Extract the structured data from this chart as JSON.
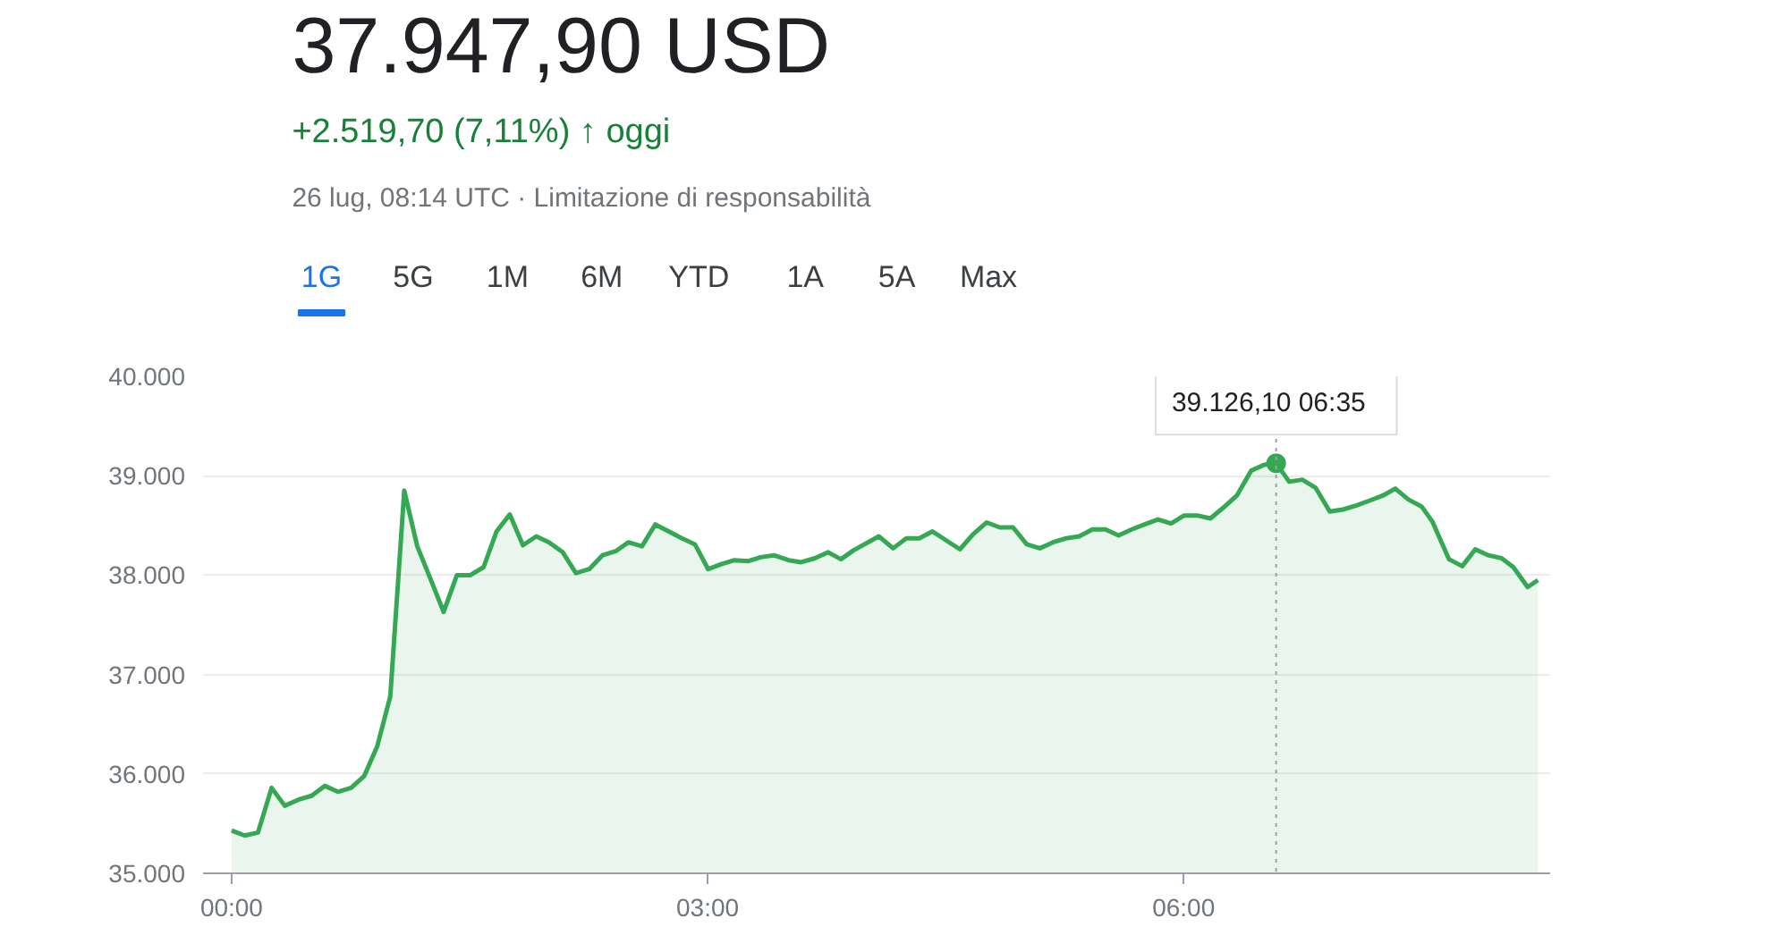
{
  "chart_data": {
    "type": "area",
    "title": "37.947,90 USD",
    "subtitle": "+2.519,70 (7,11%) ↑ oggi",
    "annotations": [
      "26 lug, 08:14 UTC · Limitazione di responsabilità",
      "1G",
      "5G",
      "1M",
      "6M",
      "YTD",
      "1A",
      "5A",
      "Max",
      {
        "text": "39.126,10   06:35",
        "x": 6.583,
        "y": 39126.1
      }
    ],
    "x": [
      0,
      0.083,
      0.166,
      0.252,
      0.335,
      0.42,
      0.504,
      0.587,
      0.67,
      0.753,
      0.836,
      0.918,
      1.0,
      1.088,
      1.17,
      1.254,
      1.336,
      1.42,
      1.505,
      1.588,
      1.67,
      1.753,
      1.836,
      1.92,
      2.0,
      2.087,
      2.17,
      2.254,
      2.337,
      2.42,
      2.5,
      2.586,
      2.67,
      2.755,
      2.838,
      2.92,
      3.003,
      3.086,
      3.169,
      3.252,
      3.335,
      3.418,
      3.51,
      3.59,
      3.676,
      3.76,
      3.84,
      3.92,
      4.079,
      4.169,
      4.252,
      4.334,
      4.417,
      4.503,
      4.59,
      4.672,
      4.759,
      4.841,
      4.925,
      5.011,
      5.094,
      5.177,
      5.259,
      5.342,
      5.425,
      5.507,
      5.59,
      5.673,
      5.755,
      5.838,
      5.921,
      6.003,
      6.086,
      6.169,
      6.251,
      6.335,
      6.425,
      6.507,
      6.583,
      6.665,
      6.748,
      6.831,
      6.921,
      7.003,
      7.086,
      7.173,
      7.255,
      7.334,
      7.417,
      7.5,
      7.567,
      7.672,
      7.756,
      7.838,
      7.92,
      8.004,
      8.078,
      8.168,
      8.233
    ],
    "series": [
      {
        "color": "#34a853",
        "values": [
          35430,
          35380,
          35410,
          35860,
          35680,
          35740,
          35780,
          35880,
          35820,
          35860,
          35980,
          36280,
          36780,
          38850,
          38290,
          37960,
          37630,
          38000,
          38000,
          38080,
          38440,
          38610,
          38300,
          38390,
          38330,
          38230,
          38020,
          38060,
          38200,
          38240,
          38330,
          38290,
          38510,
          38440,
          38370,
          38310,
          38060,
          38110,
          38150,
          38140,
          38180,
          38200,
          38150,
          38130,
          38170,
          38230,
          38160,
          38250,
          38390,
          38270,
          38370,
          38370,
          38440,
          38350,
          38260,
          38410,
          38530,
          38480,
          38480,
          38310,
          38270,
          38330,
          38370,
          38390,
          38460,
          38460,
          38400,
          38460,
          38510,
          38560,
          38520,
          38600,
          38600,
          38570,
          38680,
          38800,
          39050,
          39110,
          39126.1,
          38940,
          38960,
          38880,
          38640,
          38660,
          38700,
          38750,
          38800,
          38870,
          38760,
          38690,
          38540,
          38160,
          38090,
          38260,
          38200,
          38170,
          38080,
          37880,
          37950
        ]
      }
    ],
    "xlim": [
      -0.18,
      8.31
    ],
    "xticks": [
      {
        "value": 0,
        "label": "00:00"
      },
      {
        "value": 3,
        "label": "03:00"
      },
      {
        "value": 6,
        "label": "06:00"
      }
    ],
    "ylim": [
      35000,
      40000
    ],
    "yticks": [
      {
        "value": 35000,
        "label": "35.000"
      },
      {
        "value": 36000,
        "label": "36.000"
      },
      {
        "value": 37000,
        "label": "37.000"
      },
      {
        "value": 38000,
        "label": "38.000"
      },
      {
        "value": 39000,
        "label": "39.000"
      },
      {
        "value": 40000,
        "label": "40.000"
      }
    ],
    "ref_lines": [
      {
        "axis": "x",
        "value": 6.583,
        "color": "#9aa0a6",
        "line_style": "dotted"
      }
    ],
    "grid": "y"
  }
}
